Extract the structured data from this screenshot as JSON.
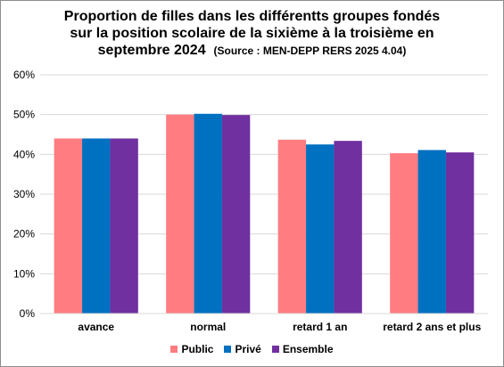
{
  "title": {
    "line1": "Proportion de filles dans les différentts groupes fondés",
    "line2": "sur la position scolaire de la sixième à la troisième en",
    "line3": "septembre 2024",
    "source": "(Source : MEN-DEPP RERS 2025 4.04)"
  },
  "chart_data": {
    "type": "bar",
    "categories": [
      "avance",
      "normal",
      "retard 1 an",
      "retard 2 ans et plus"
    ],
    "series": [
      {
        "name": "Public",
        "color": "#ff7c80",
        "values": [
          44.0,
          50.0,
          43.7,
          40.3
        ]
      },
      {
        "name": "Privé",
        "color": "#0070c0",
        "values": [
          44.0,
          50.2,
          42.5,
          41.1
        ]
      },
      {
        "name": "Ensemble",
        "color": "#7030a0",
        "values": [
          44.0,
          49.9,
          43.4,
          40.5
        ]
      }
    ],
    "ylim": [
      0,
      60
    ],
    "yticks": [
      "0%",
      "10%",
      "20%",
      "30%",
      "40%",
      "50%",
      "60%"
    ],
    "ytick_values": [
      0,
      10,
      20,
      30,
      40,
      50,
      60
    ],
    "grid": true,
    "legend_position": "bottom",
    "xlabel": "",
    "ylabel": ""
  }
}
